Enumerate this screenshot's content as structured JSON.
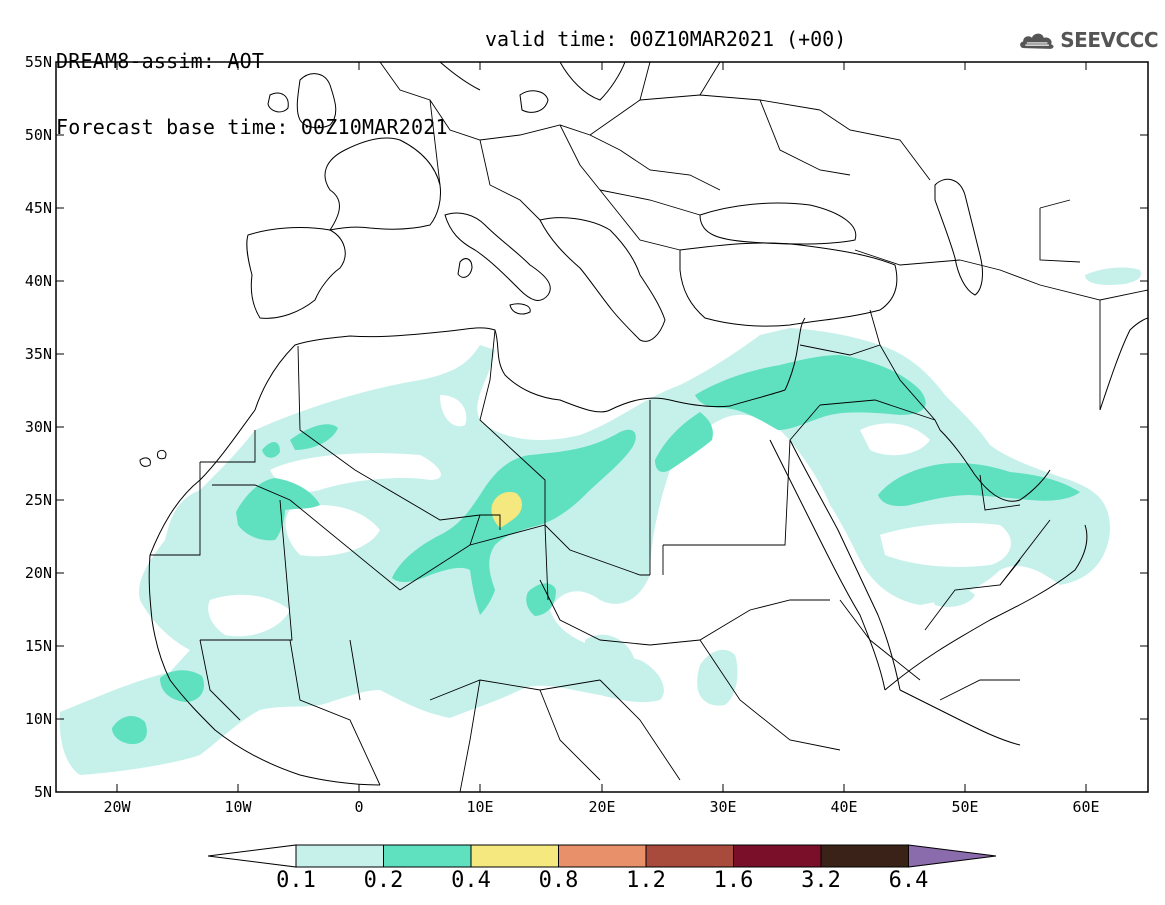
{
  "header": {
    "model_title": "DREAM8-assim: AOT",
    "forecast_base": "Forecast base time: 00Z10MAR2021",
    "valid_time": "valid time: 00Z10MAR2021 (+00)"
  },
  "logo": {
    "text": "SEEVCCC",
    "icon": "cloud-icon"
  },
  "map": {
    "lon_range": [
      -25,
      65
    ],
    "lat_range": [
      5,
      55
    ],
    "lat_ticks": [
      "55N",
      "50N",
      "45N",
      "40N",
      "35N",
      "30N",
      "25N",
      "20N",
      "15N",
      "10N",
      "5N"
    ],
    "lon_ticks": [
      "20W",
      "10W",
      "0",
      "10E",
      "20E",
      "30E",
      "40E",
      "50E",
      "60E"
    ]
  },
  "colorbar": {
    "labels": [
      "0.1",
      "0.2",
      "0.4",
      "0.8",
      "1.2",
      "1.6",
      "3.2",
      "6.4"
    ],
    "colors": [
      "#ffffff",
      "#c6f1eb",
      "#5fe0bf",
      "#f5e87e",
      "#e8906a",
      "#a84a3c",
      "#7a0f2a",
      "#3a2218",
      "#8a6bab"
    ]
  }
}
